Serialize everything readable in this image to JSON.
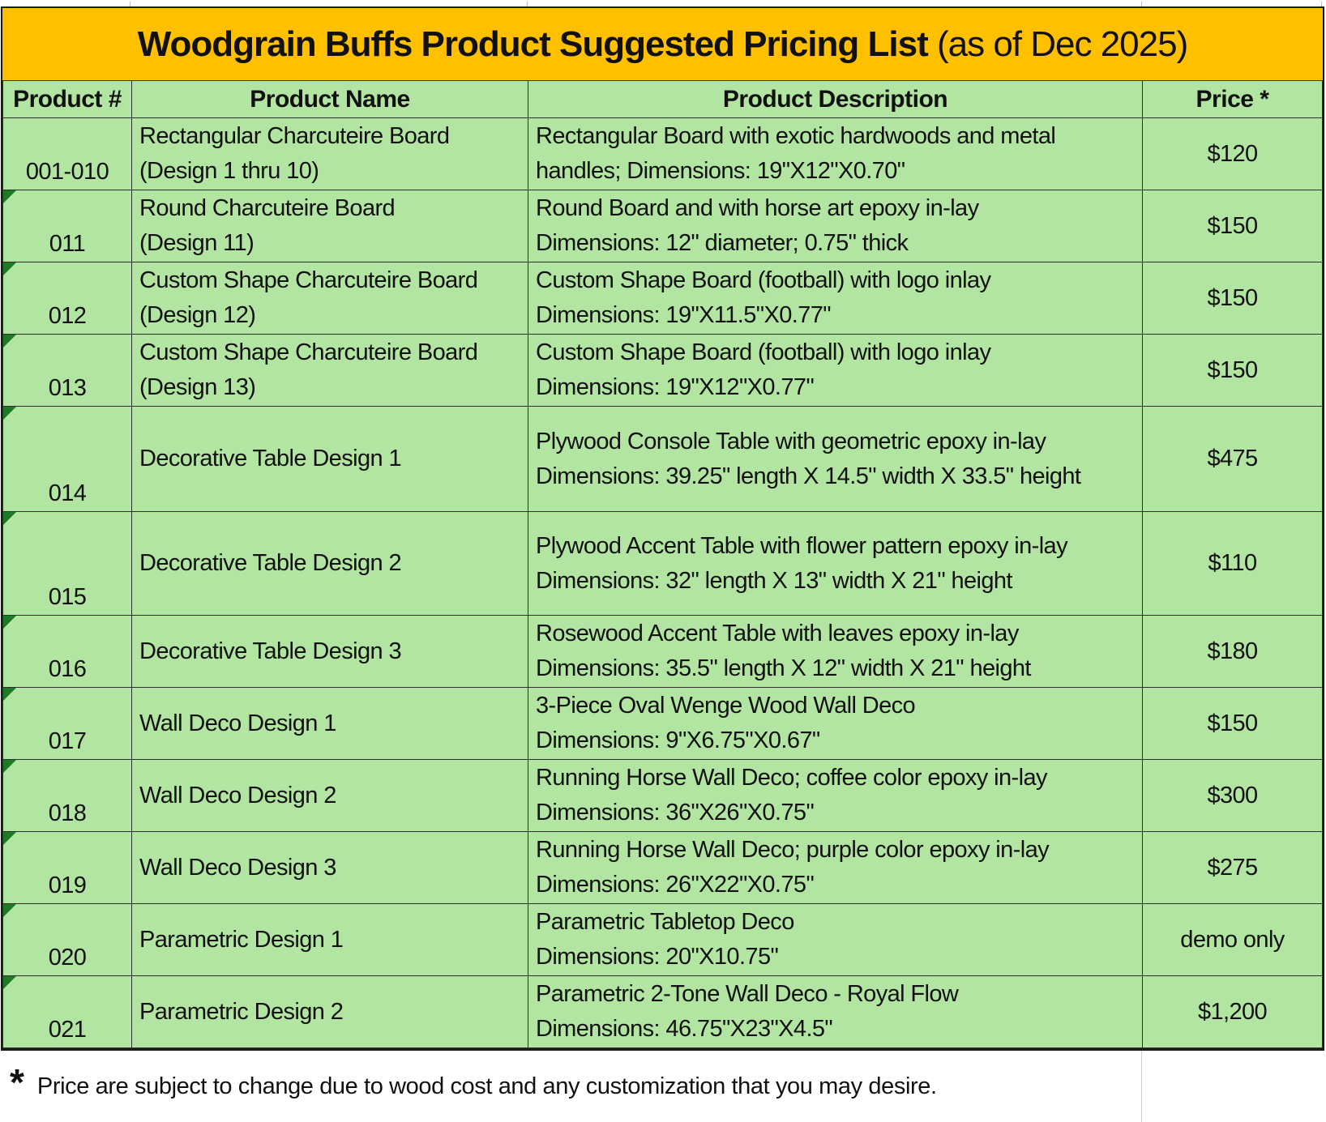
{
  "title": {
    "main": "Woodgrain Buffs Product Suggested Pricing List",
    "suffix": " (as of Dec 2025)"
  },
  "columns": [
    "Product #",
    "Product Name",
    "Product Description",
    "Price *"
  ],
  "rows": [
    {
      "num": "001-010",
      "name": [
        "Rectangular Charcuteire Board",
        "(Design 1 thru 10)"
      ],
      "desc": [
        "Rectangular Board with exotic hardwoods and metal",
        "handles; Dimensions: 19\"X12\"X0.70\""
      ],
      "price": "$120",
      "flag": false
    },
    {
      "num": "011",
      "name": [
        "Round Charcuteire Board",
        "(Design 11)"
      ],
      "desc": [
        "Round Board and with horse art epoxy in-lay",
        "Dimensions: 12\" diameter; 0.75\" thick"
      ],
      "price": "$150",
      "flag": true
    },
    {
      "num": "012",
      "name": [
        "Custom Shape Charcuteire Board",
        "(Design 12)"
      ],
      "desc": [
        "Custom Shape Board (football) with logo inlay",
        "Dimensions: 19\"X11.5\"X0.77\""
      ],
      "price": "$150",
      "flag": true
    },
    {
      "num": "013",
      "name": [
        "Custom Shape Charcuteire Board",
        "(Design 13)"
      ],
      "desc": [
        "Custom Shape Board (football) with logo inlay",
        "Dimensions: 19\"X12\"X0.77\""
      ],
      "price": "$150",
      "flag": true
    },
    {
      "num": "014",
      "name": [
        "Decorative Table Design 1"
      ],
      "desc": [
        "Plywood Console Table with geometric epoxy in-lay",
        "Dimensions: 39.25\" length X 14.5\" width X 33.5\" height"
      ],
      "price": "$475",
      "flag": true
    },
    {
      "num": "015",
      "name": [
        "Decorative Table Design 2"
      ],
      "desc": [
        "Plywood Accent Table with flower pattern epoxy in-lay",
        "Dimensions: 32\" length X 13\" width X 21\" height"
      ],
      "price": "$110",
      "flag": true
    },
    {
      "num": "016",
      "name": [
        "Decorative Table Design 3"
      ],
      "desc": [
        "Rosewood Accent Table with leaves epoxy in-lay",
        "Dimensions: 35.5\" length X 12\" width X 21\" height"
      ],
      "price": "$180",
      "flag": true
    },
    {
      "num": "017",
      "name": [
        "Wall Deco Design 1"
      ],
      "desc": [
        "3-Piece Oval Wenge Wood Wall Deco",
        "Dimensions: 9\"X6.75\"X0.67\""
      ],
      "price": "$150",
      "flag": true
    },
    {
      "num": "018",
      "name": [
        "Wall Deco Design 2"
      ],
      "desc": [
        "Running Horse Wall Deco; coffee color epoxy in-lay",
        "Dimensions: 36\"X26\"X0.75\""
      ],
      "price": "$300",
      "flag": true
    },
    {
      "num": "019",
      "name": [
        "Wall Deco Design 3"
      ],
      "desc": [
        "Running Horse Wall Deco; purple color epoxy in-lay",
        "Dimensions: 26\"X22\"X0.75\""
      ],
      "price": "$275",
      "flag": true
    },
    {
      "num": "020",
      "name": [
        "Parametric Design 1"
      ],
      "desc": [
        "Parametric Tabletop Deco",
        "Dimensions: 20\"X10.75\""
      ],
      "price": "demo only",
      "flag": true
    },
    {
      "num": "021",
      "name": [
        "Parametric Design 2"
      ],
      "desc": [
        "Parametric 2-Tone Wall Deco - Royal Flow",
        "Dimensions: 46.75\"X23\"X4.5\""
      ],
      "price": "$1,200",
      "flag": true
    }
  ],
  "footer": {
    "asterisk": "*",
    "note": "Price are subject to change due to wood cost and any customization that you may desire."
  },
  "colors": {
    "title_bg": "#FFC000",
    "cell_bg": "#B3E5A2",
    "indicator": "#1E7B25",
    "grid": "#2E2E2E"
  }
}
